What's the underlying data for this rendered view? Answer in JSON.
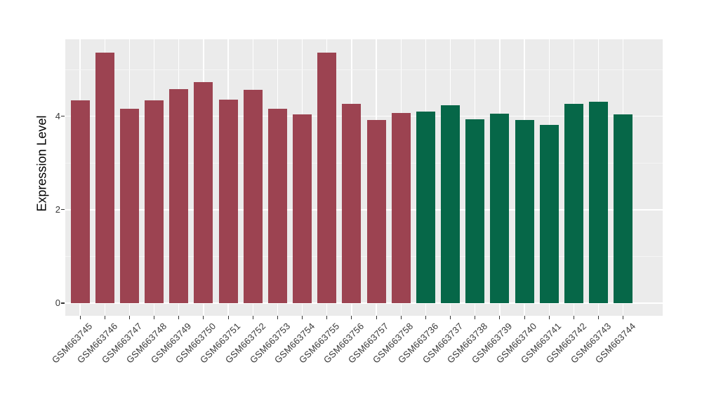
{
  "chart_data": {
    "type": "bar",
    "title": "",
    "ylabel": "Expression Level",
    "xlabel": "",
    "ylim": [
      -0.27,
      5.65
    ],
    "yticks": [
      0,
      2,
      4
    ],
    "ytick_labels": [
      "0",
      "2",
      "4"
    ],
    "yticks_minor": [
      1,
      3,
      5
    ],
    "grid": "white major and minor horizontal lines, white vertical line at each category center, on gray panel",
    "legend_position": "none",
    "colors": {
      "panel_background": "#EBEBEB",
      "grid_major": "#FFFFFF",
      "grid_minor": "#F6F6F6",
      "axis_text": "#383838",
      "axis_title": "#000000",
      "tick_marks": "#333333",
      "group_red": "#9C4351",
      "group_green": "#066748"
    },
    "series": [
      {
        "name": "red-group",
        "color": "#9C4351",
        "categories": [
          "GSM663745",
          "GSM663746",
          "GSM663747",
          "GSM663748",
          "GSM663749",
          "GSM663750",
          "GSM663751",
          "GSM663752",
          "GSM663753",
          "GSM663754",
          "GSM663755",
          "GSM663756",
          "GSM663757",
          "GSM663758"
        ],
        "values": [
          4.35,
          5.36,
          4.17,
          4.34,
          4.59,
          4.74,
          4.36,
          4.57,
          4.17,
          4.04,
          5.36,
          4.27,
          3.92,
          4.08
        ]
      },
      {
        "name": "green-group",
        "color": "#066748",
        "categories": [
          "GSM663736",
          "GSM663737",
          "GSM663738",
          "GSM663739",
          "GSM663740",
          "GSM663741",
          "GSM663742",
          "GSM663743",
          "GSM663744"
        ],
        "values": [
          4.1,
          4.24,
          3.94,
          4.06,
          3.92,
          3.82,
          4.27,
          4.32,
          4.05
        ]
      }
    ]
  }
}
